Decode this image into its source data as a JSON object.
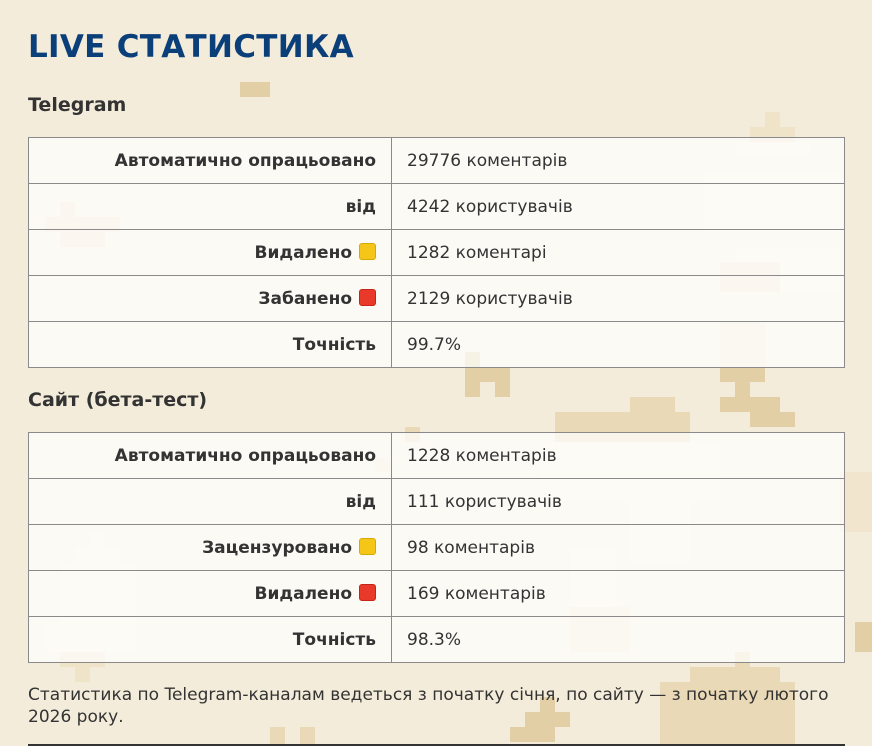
{
  "page": {
    "title": "LIVE СТАТИСТИКА",
    "footnote": "Статистика по Telegram-каналам ведеться з початку січня, по сайту — з початку лютого 2026 року."
  },
  "telegram": {
    "heading": "Telegram",
    "rows": [
      {
        "label": "Автоматично опрацьовано",
        "value": "29776 коментарів"
      },
      {
        "label": "від",
        "value": "4242 користувачів"
      },
      {
        "label": "Видалено",
        "value": "1282 коментарі",
        "badge": "yellow-square-icon"
      },
      {
        "label": "Забанено",
        "value": "2129 користувачів",
        "badge": "red-square-icon"
      },
      {
        "label": "Точність",
        "value": "99.7%"
      }
    ]
  },
  "site": {
    "heading": "Сайт (бета-тест)",
    "rows": [
      {
        "label": "Автоматично опрацьовано",
        "value": "1228 коментарів"
      },
      {
        "label": "від",
        "value": "111 користувачів"
      },
      {
        "label": "Зацензуровано",
        "value": "98 коментарів",
        "badge": "yellow-square-icon"
      },
      {
        "label": "Видалено",
        "value": "169 коментарів",
        "badge": "red-square-icon"
      },
      {
        "label": "Точність",
        "value": "98.3%"
      }
    ]
  },
  "colors": {
    "title": "#0b3f7a",
    "background": "#f4ecda",
    "yellow_badge": "#f5c518",
    "red_badge": "#e8392b"
  }
}
